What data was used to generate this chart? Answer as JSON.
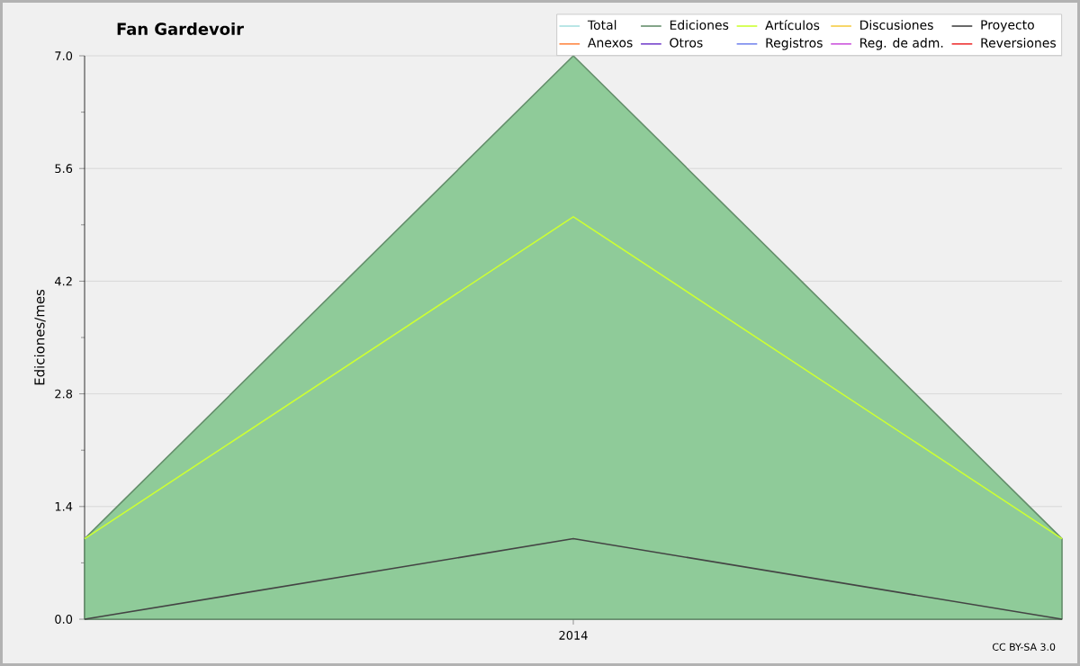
{
  "chart_data": {
    "type": "line",
    "title": "Fan Gardevoir",
    "ylabel": "Ediciones/mes",
    "categories": [
      null,
      "2014",
      null
    ],
    "ylim": [
      0,
      7
    ],
    "yticks": [
      {
        "value": 0,
        "label": "0.0"
      },
      {
        "value": 0.7,
        "label": null
      },
      1.4,
      {
        "value": 2.1,
        "label": null
      },
      2.8,
      {
        "value": 3.5,
        "label": null
      },
      4.2,
      {
        "value": 4.9,
        "label": null
      },
      5.6,
      {
        "value": 6.3,
        "label": null
      },
      {
        "value": 7,
        "label": "7.0"
      }
    ],
    "grid": "y",
    "legend": "top right",
    "marker": "none",
    "annotations": [
      "CC BY-SA 3.0"
    ],
    "series": [
      {
        "name": "Total",
        "color": "#a8e0e0",
        "values": [
          null,
          null,
          null
        ]
      },
      {
        "name": "Ediciones",
        "type": "area",
        "color": "#8fcb99",
        "values": [
          1,
          7,
          1
        ]
      },
      {
        "name": "Artículos",
        "color": "#ccff33",
        "values": [
          1,
          5,
          1
        ]
      },
      {
        "name": "Discusiones",
        "color": "#f5cc44",
        "values": [
          null,
          null,
          null
        ]
      },
      {
        "name": "Proyecto",
        "color": "#444444",
        "values": [
          0,
          1,
          0
        ]
      },
      {
        "name": "Anexos",
        "color": "#ff8844",
        "values": [
          null,
          null,
          null
        ]
      },
      {
        "name": "Otros",
        "color": "#7744cc",
        "values": [
          null,
          null,
          null
        ]
      },
      {
        "name": "Registros",
        "color": "#7788ee",
        "values": [
          null,
          null,
          null
        ]
      },
      {
        "name": "Reg. de adm.",
        "color": "#cc55dd",
        "values": [
          null,
          null,
          null
        ]
      },
      {
        "name": "Reversiones",
        "color": "#ee3333",
        "values": [
          null,
          null,
          null
        ]
      }
    ]
  }
}
